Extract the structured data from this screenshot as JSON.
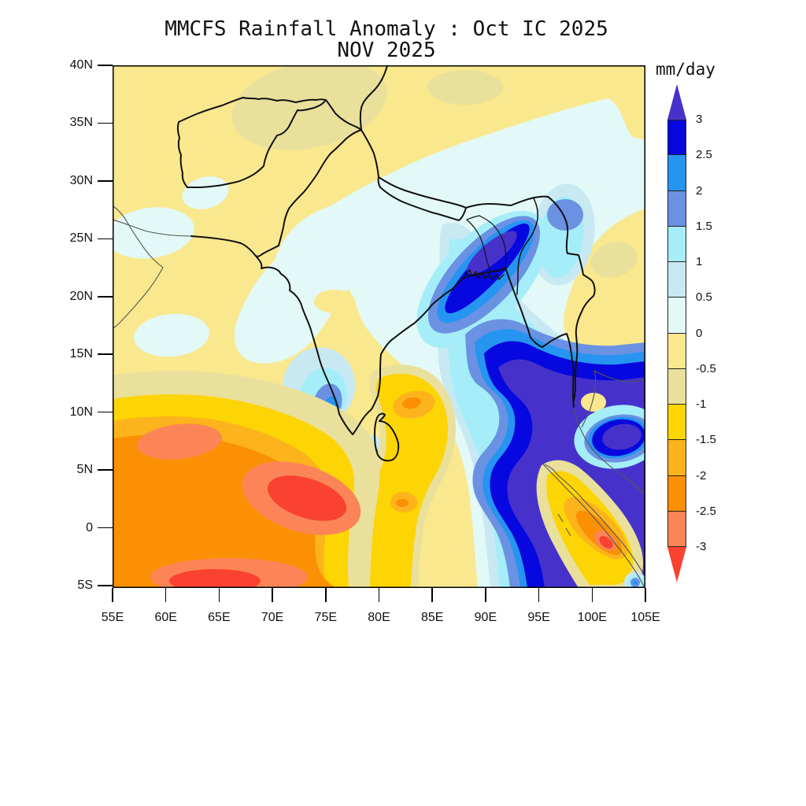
{
  "title": {
    "line1": "MMCFS Rainfall Anomaly : Oct IC 2025",
    "line2": "NOV 2025"
  },
  "colorbar": {
    "unit": "mm/day",
    "labels": [
      "3",
      "2.5",
      "2",
      "1.5",
      "1",
      "0.5",
      "0",
      "-0.5",
      "-1",
      "-1.5",
      "-2",
      "-2.5",
      "-3"
    ],
    "segment_colors": [
      "#0707df",
      "#2694f1",
      "#6b91e3",
      "#a5eef9",
      "#c8e9f2",
      "#e2f9f7",
      "#fae88e",
      "#e9e09c",
      "#fdd404",
      "#fcb31c",
      "#fb9005",
      "#fb8557"
    ],
    "arrow_top_color": "#4632cb",
    "arrow_bottom_color": "#f9422f"
  },
  "axes": {
    "lat_ticks": [
      "40N",
      "35N",
      "30N",
      "25N",
      "20N",
      "15N",
      "10N",
      "5N",
      "0",
      "5S"
    ],
    "lon_ticks": [
      "55E",
      "60E",
      "65E",
      "70E",
      "75E",
      "80E",
      "85E",
      "90E",
      "95E",
      "100E",
      "105E"
    ]
  },
  "level_colors": {
    "p4": "#4632cb",
    "p3": "#0707df",
    "p2": "#2694f1",
    "p1": "#6b91e3",
    "c": "#a5eef9",
    "lb": "#c8e9f2",
    "pc": "#e2f9f7",
    "y": "#fae88e",
    "k": "#e9e09c",
    "g": "#fdd404",
    "og": "#fcb31c",
    "o": "#fb9005",
    "s": "#fb8557",
    "r": "#f9422f"
  },
  "geo_colors": {
    "coast_border": "#111111",
    "thin_border": "#555555",
    "plot_frame": "#000000"
  },
  "chart_data": {
    "type": "heatmap",
    "subtype": "filled-contour-anomaly-map",
    "title": "MMCFS Rainfall Anomaly : Oct IC 2025",
    "subtitle": "NOV 2025",
    "units": "mm/day",
    "lon_range": [
      55,
      105
    ],
    "lat_range": [
      -5.3,
      40
    ],
    "lon_tick_interval_deg": 5,
    "lat_tick_interval_deg": 5,
    "contour_levels": [
      -3,
      -2.5,
      -2,
      -1.5,
      -1,
      -0.5,
      0,
      0.5,
      1,
      1.5,
      2,
      2.5,
      3
    ],
    "legend_position": "right",
    "grid": false,
    "regions": [
      {
        "region": "NW India / Pakistan / Afghanistan (55-85E, 27-40N)",
        "anomaly_mm_day": "0 to -1",
        "note": "pale yellow with khaki patch over Karakoram ~70-80E,34-39N"
      },
      {
        "region": "Himalayan foothills band (78-100E, 26-33N)",
        "anomaly_mm_day": "0 to +0.5"
      },
      {
        "region": "Central India (70-85E, 13-27N)",
        "anomaly_mm_day": "0 to +0.5"
      },
      {
        "region": "Bangladesh / head Bay of Bengal (88-93E, 20-26N)",
        "anomaly_mm_day": "+2.5 to >+3",
        "note": "elongated NE-SW wet core"
      },
      {
        "region": "NE India (93-96E, 24-27N)",
        "anomaly_mm_day": "+1.5 to +2"
      },
      {
        "region": "SE Bay of Bengal / Andaman Sea (88-103E, 5S-13N)",
        "anomaly_mm_day": ">+3",
        "note": "large wet core"
      },
      {
        "region": "Malay coast eddy (~100-103E, 7-11N)",
        "anomaly_mm_day": ">+3"
      },
      {
        "region": "Kerala coast spot (~75-76E, 8-12N)",
        "anomaly_mm_day": "+1.5 to +3"
      },
      {
        "region": "Arabian Sea (55-75E, 5S-12N)",
        "anomaly_mm_day": "-1.5 to <-3",
        "note": "dry cores <-3 near 62-70E,2-5N and 58-65E,0-2S"
      },
      {
        "region": "South India / Gulf of Mannar (77-84E, 5-13N)",
        "anomaly_mm_day": "-1 to -2.5",
        "note": "dry spots ~82E,10.5N and ~82E,2N"
      },
      {
        "region": "Myanmar / Thailand (95-105E, 13-27N)",
        "anomaly_mm_day": "0 to -1"
      },
      {
        "region": "Sumatra (97-104E, 5S-3N)",
        "anomaly_mm_day": "-1 to <-3",
        "note": "dry core near 101E,1.5S"
      }
    ]
  }
}
